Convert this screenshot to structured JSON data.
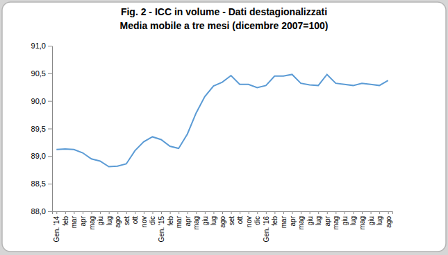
{
  "chart_data": {
    "type": "line",
    "title": "Fig. 2 - ICC in volume - Dati destagionalizzati",
    "subtitle": "Media mobile a tre mesi (dicembre 2007=100)",
    "categories": [
      "Gen. '14",
      "feb",
      "mar",
      "apr",
      "mag",
      "giu",
      "lug",
      "ago",
      "set",
      "ott",
      "nov",
      "dic",
      "Gen. '15",
      "feb",
      "mar",
      "apr",
      "mag",
      "giu",
      "lug",
      "ago",
      "set",
      "ott",
      "nov",
      "dic",
      "Gen. '16",
      "feb",
      "mar",
      "apr",
      "mag",
      "giu",
      "lug",
      "apr",
      "mag",
      "giu",
      "lug",
      "mag",
      "giu",
      "lug",
      "ago"
    ],
    "values": [
      89.12,
      89.13,
      89.12,
      89.06,
      88.95,
      88.91,
      88.81,
      88.82,
      88.86,
      89.1,
      89.26,
      89.35,
      89.3,
      89.18,
      89.14,
      89.4,
      89.78,
      90.08,
      90.27,
      90.34,
      90.46,
      90.3,
      90.3,
      90.24,
      90.28,
      90.45,
      90.45,
      90.48,
      90.32,
      90.29,
      90.28,
      90.48,
      90.32,
      90.3,
      90.28,
      90.32,
      90.3,
      90.28,
      90.37
    ],
    "color": "#5b9bd5",
    "marker": "none",
    "line_style": "solid",
    "grid": false,
    "ylim": [
      88,
      91
    ],
    "yticks": [
      {
        "value": 88,
        "label": "88,0"
      },
      {
        "value": 88.5,
        "label": "88,5"
      },
      {
        "value": 89,
        "label": "89,0"
      },
      {
        "value": 89.5,
        "label": "89,5"
      },
      {
        "value": 90,
        "label": "90,0"
      },
      {
        "value": 90.5,
        "label": "90,5"
      },
      {
        "value": 91,
        "label": "91,0"
      }
    ]
  }
}
